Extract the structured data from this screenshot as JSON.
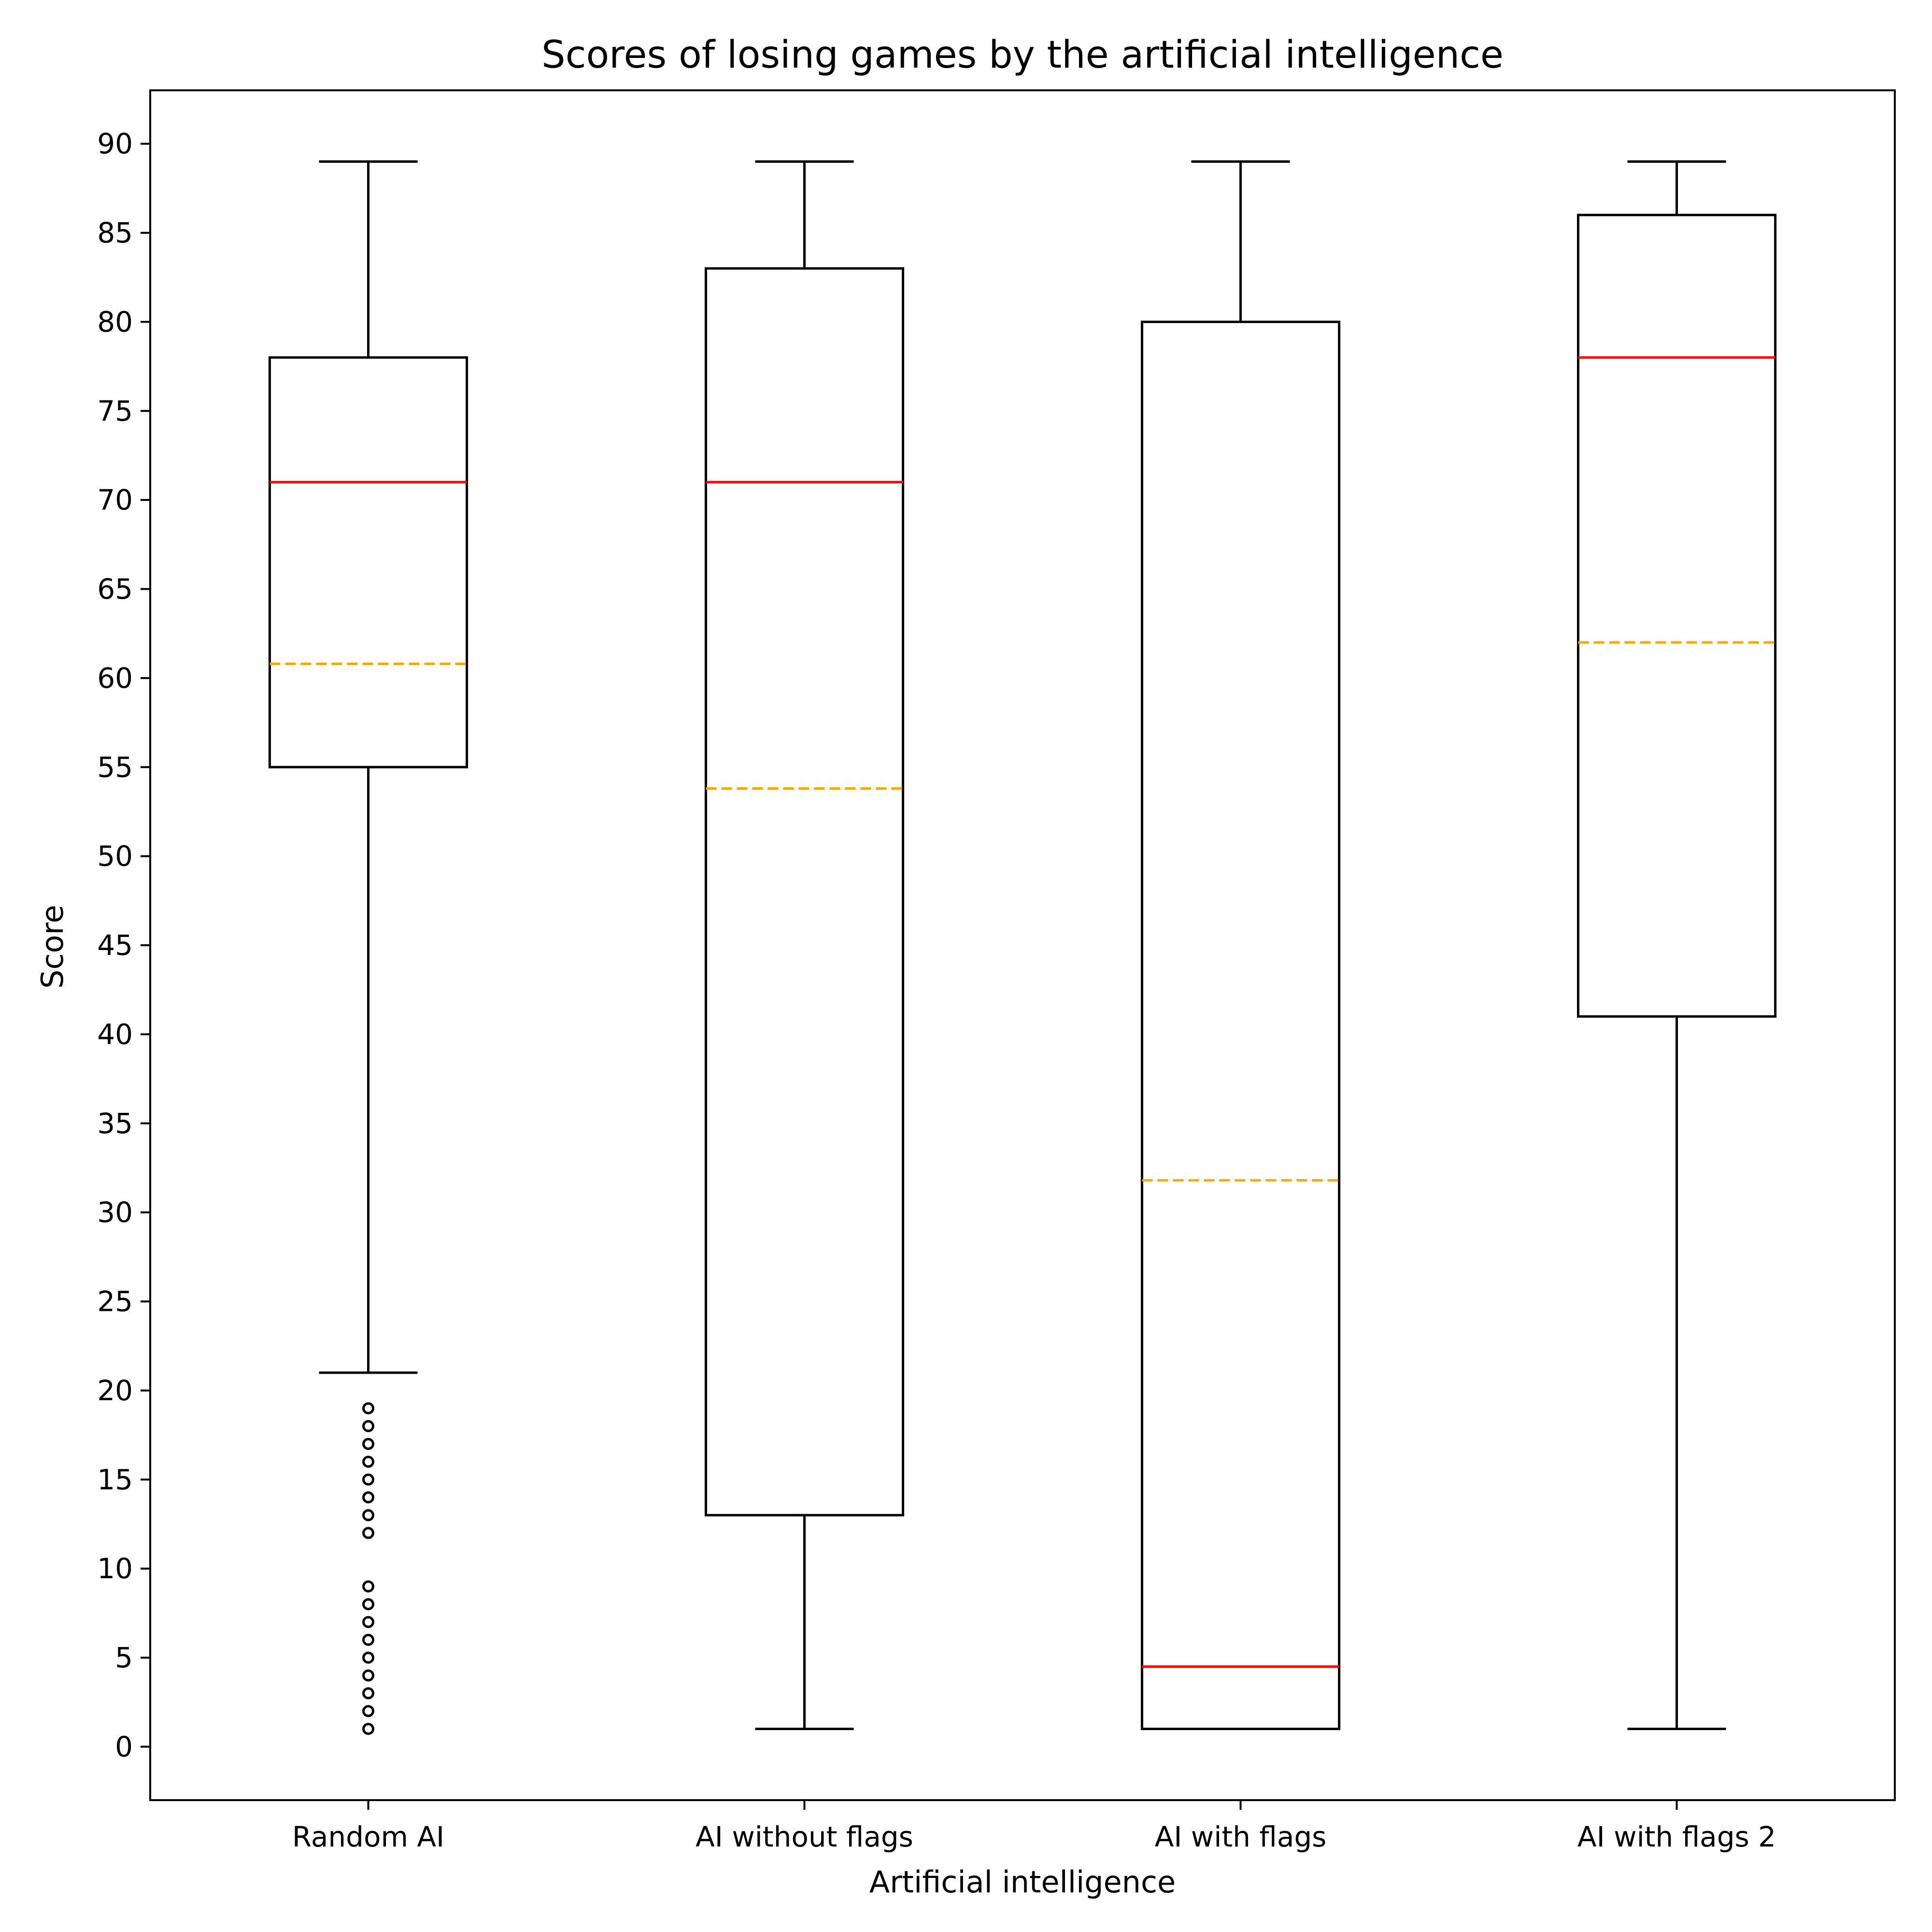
{
  "chart_data": {
    "type": "box",
    "title": "Scores of losing games by the artificial intelligence",
    "xlabel": "Artificial intelligence",
    "ylabel": "Score",
    "ylim": [
      -3,
      93
    ],
    "yticks": [
      0,
      5,
      10,
      15,
      20,
      25,
      30,
      35,
      40,
      45,
      50,
      55,
      60,
      65,
      70,
      75,
      80,
      85,
      90
    ],
    "categories": [
      "Random AI",
      "AI without flags",
      "AI with flags",
      "AI with flags 2"
    ],
    "boxes": [
      {
        "whisker_low": 21,
        "q1": 55,
        "median": 71,
        "mean": 60.8,
        "q3": 78,
        "whisker_high": 89,
        "outliers": [
          1,
          2,
          3,
          4,
          5,
          6,
          7,
          8,
          9,
          12,
          13,
          14,
          15,
          16,
          17,
          18,
          19
        ]
      },
      {
        "whisker_low": 1,
        "q1": 13,
        "median": 71,
        "mean": 53.8,
        "q3": 83,
        "whisker_high": 89,
        "outliers": []
      },
      {
        "whisker_low": 1,
        "q1": 1,
        "median": 4.5,
        "mean": 31.8,
        "q3": 80,
        "whisker_high": 89,
        "outliers": []
      },
      {
        "whisker_low": 1,
        "q1": 41,
        "median": 78,
        "mean": 62,
        "q3": 86,
        "whisker_high": 89,
        "outliers": []
      }
    ],
    "colors": {
      "box": "#000000",
      "median": "#ff0000",
      "mean": "#ffa500",
      "outlier": "#000000"
    },
    "mean_line_style": "dashed",
    "grid": false,
    "legend": "none"
  }
}
